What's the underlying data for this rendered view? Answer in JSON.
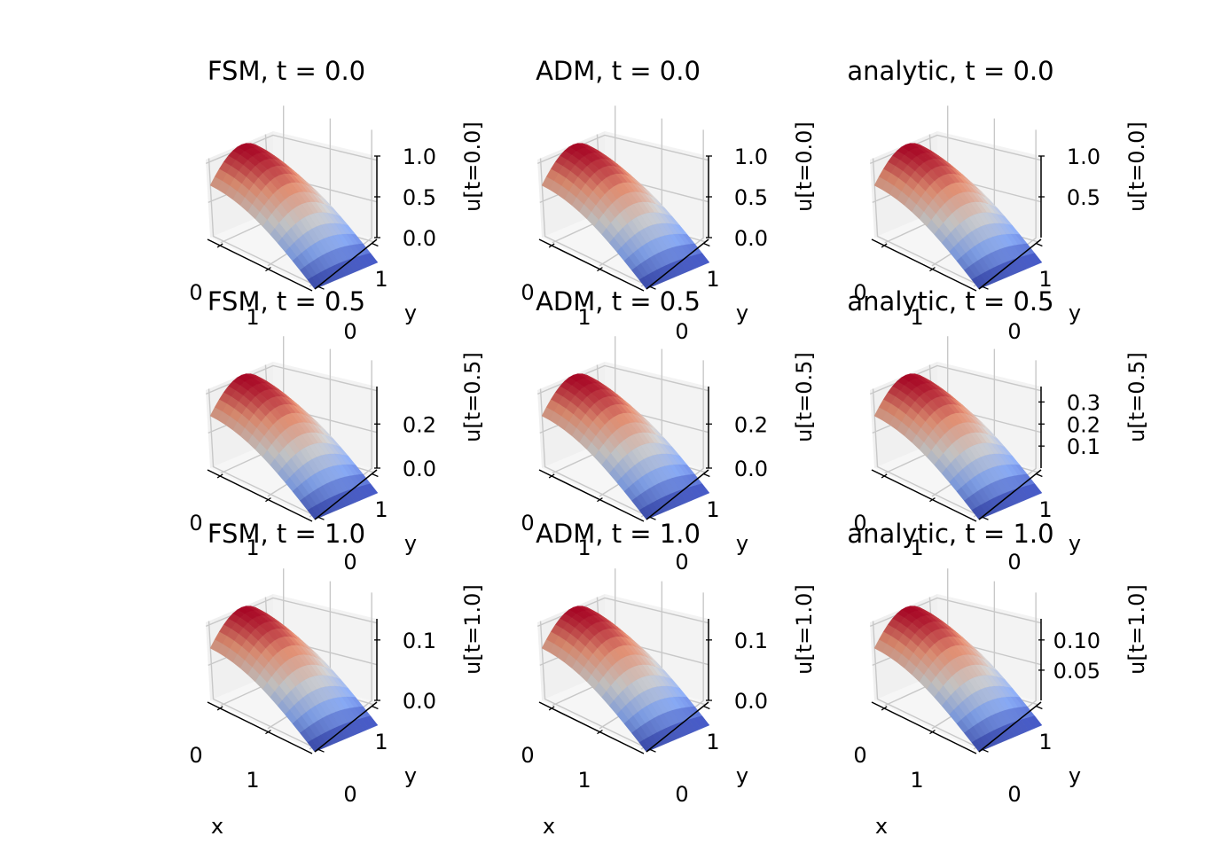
{
  "chart_data": [
    {
      "type": "surface",
      "title": "FSM, t = 0.0",
      "xlabel": "",
      "ylabel": "y",
      "zlabel": "u[t=0.0]",
      "x_ticks": [
        "0",
        "1"
      ],
      "y_ticks": [
        "0",
        "1"
      ],
      "z_ticks": [
        "0.0",
        "0.5",
        "1.0"
      ],
      "zlim": [
        0,
        1.0
      ],
      "peak": 1.0,
      "colormap": "coolwarm"
    },
    {
      "type": "surface",
      "title": "ADM, t = 0.0",
      "xlabel": "",
      "ylabel": "y",
      "zlabel": "u[t=0.0]",
      "x_ticks": [
        "0",
        "1"
      ],
      "y_ticks": [
        "0",
        "1"
      ],
      "z_ticks": [
        "0.0",
        "0.5",
        "1.0"
      ],
      "zlim": [
        0,
        1.0
      ],
      "peak": 1.0,
      "colormap": "coolwarm"
    },
    {
      "type": "surface",
      "title": "analytic, t = 0.0",
      "xlabel": "",
      "ylabel": "y",
      "zlabel": "u[t=0.0]",
      "x_ticks": [
        "0",
        "1"
      ],
      "y_ticks": [
        "0",
        "1"
      ],
      "z_ticks": [
        "0.5",
        "1.0"
      ],
      "zlim": [
        0,
        1.0
      ],
      "peak": 1.0,
      "colormap": "coolwarm"
    },
    {
      "type": "surface",
      "title": "FSM, t = 0.5",
      "xlabel": "",
      "ylabel": "y",
      "zlabel": "u[t=0.5]",
      "x_ticks": [
        "0",
        "1"
      ],
      "y_ticks": [
        "0",
        "1"
      ],
      "z_ticks": [
        "0.0",
        "0.2"
      ],
      "zlim": [
        0,
        0.37
      ],
      "peak": 0.37,
      "colormap": "coolwarm"
    },
    {
      "type": "surface",
      "title": "ADM, t = 0.5",
      "xlabel": "",
      "ylabel": "y",
      "zlabel": "u[t=0.5]",
      "x_ticks": [
        "0",
        "1"
      ],
      "y_ticks": [
        "0",
        "1"
      ],
      "z_ticks": [
        "0.0",
        "0.2"
      ],
      "zlim": [
        0,
        0.37
      ],
      "peak": 0.37,
      "colormap": "coolwarm"
    },
    {
      "type": "surface",
      "title": "analytic, t = 0.5",
      "xlabel": "",
      "ylabel": "y",
      "zlabel": "u[t=0.5]",
      "x_ticks": [
        "0",
        "1"
      ],
      "y_ticks": [
        "0",
        "1"
      ],
      "z_ticks": [
        "0.1",
        "0.2",
        "0.3"
      ],
      "zlim": [
        0,
        0.37
      ],
      "peak": 0.37,
      "colormap": "coolwarm"
    },
    {
      "type": "surface",
      "title": "FSM, t = 1.0",
      "xlabel": "x",
      "ylabel": "y",
      "zlabel": "u[t=1.0]",
      "x_ticks": [
        "0",
        "1"
      ],
      "y_ticks": [
        "0",
        "1"
      ],
      "z_ticks": [
        "0.0",
        "0.1"
      ],
      "zlim": [
        0,
        0.135
      ],
      "peak": 0.135,
      "colormap": "coolwarm"
    },
    {
      "type": "surface",
      "title": "ADM, t = 1.0",
      "xlabel": "x",
      "ylabel": "y",
      "zlabel": "u[t=1.0]",
      "x_ticks": [
        "0",
        "1"
      ],
      "y_ticks": [
        "0",
        "1"
      ],
      "z_ticks": [
        "0.0",
        "0.1"
      ],
      "zlim": [
        0,
        0.135
      ],
      "peak": 0.135,
      "colormap": "coolwarm"
    },
    {
      "type": "surface",
      "title": "analytic, t = 1.0",
      "xlabel": "x",
      "ylabel": "y",
      "zlabel": "u[t=1.0]",
      "x_ticks": [
        "0",
        "1"
      ],
      "y_ticks": [
        "0",
        "1"
      ],
      "z_ticks": [
        "0.05",
        "0.10"
      ],
      "zlim": [
        0,
        0.135
      ],
      "peak": 0.135,
      "colormap": "coolwarm"
    }
  ]
}
